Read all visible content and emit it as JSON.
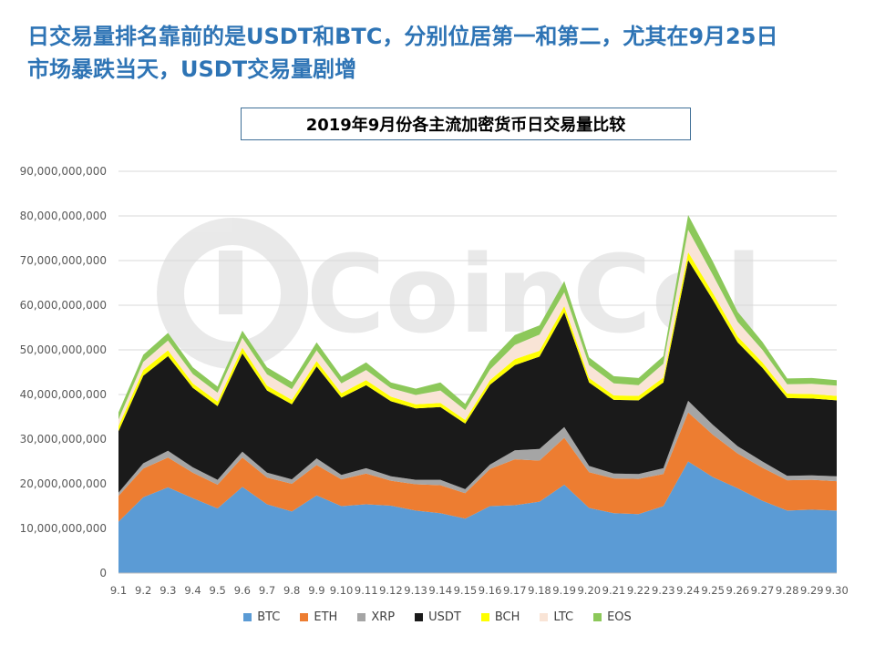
{
  "headline": {
    "line1": "日交易量排名靠前的是USDT和BTC，分别位居第一和第二，尤其在9月25日",
    "line2": "市场暴跌当天，USDT交易量剧增"
  },
  "watermark": {
    "text": "CoinCol"
  },
  "chart_data": {
    "type": "area",
    "stacked": true,
    "title": "2019年9月份各主流加密货币日交易量比较",
    "xlabel": "",
    "ylabel": "",
    "ylim": [
      0,
      90000000000
    ],
    "y_ticks": [
      0,
      10000000000,
      20000000000,
      30000000000,
      40000000000,
      50000000000,
      60000000000,
      70000000000,
      80000000000,
      90000000000
    ],
    "y_tick_labels": [
      "0",
      "10,000,000,000",
      "20,000,000,000",
      "30,000,000,000",
      "40,000,000,000",
      "50,000,000,000",
      "60,000,000,000",
      "70,000,000,000",
      "80,000,000,000",
      "90,000,000,000"
    ],
    "grid": true,
    "legend_position": "bottom",
    "categories": [
      "9.1",
      "9.2",
      "9.3",
      "9.4",
      "9.5",
      "9.6",
      "9.7",
      "9.8",
      "9.9",
      "9.10",
      "9.11",
      "9.12",
      "9.13",
      "9.14",
      "9.15",
      "9.16",
      "9.17",
      "9.18",
      "9.19",
      "9.20",
      "9.21",
      "9.22",
      "9.23",
      "9.24",
      "9.25",
      "9.26",
      "9.27",
      "9.28",
      "9.29",
      "9.30"
    ],
    "series": [
      {
        "name": "BTC",
        "color": "#5b9bd5",
        "values": [
          11.5,
          17,
          19.2,
          16.8,
          14.5,
          19.3,
          15.4,
          13.8,
          17.4,
          15,
          15.4,
          15.1,
          14,
          13.4,
          12.2,
          15,
          15.2,
          16,
          19.8,
          14.6,
          13.4,
          13.2,
          15,
          25,
          21.5,
          19,
          16.2,
          14,
          14.2,
          14
        ]
      },
      {
        "name": "ETH",
        "color": "#ed7d31",
        "values": [
          5.8,
          6.4,
          6.7,
          5.7,
          5.3,
          6.6,
          6,
          6.2,
          6.8,
          6,
          6.9,
          5.6,
          5.9,
          6.3,
          5.7,
          8.3,
          10.3,
          9.2,
          10.5,
          8,
          7.8,
          7.9,
          7.2,
          11,
          9.5,
          7.8,
          7.4,
          6.8,
          6.7,
          6.6
        ]
      },
      {
        "name": "XRP",
        "color": "#a5a5a5",
        "values": [
          0.7,
          1.2,
          1.5,
          1.2,
          1.1,
          1.3,
          1.1,
          1,
          1.5,
          1,
          1.2,
          1,
          1,
          1.2,
          0.9,
          1,
          2,
          2.6,
          2.4,
          1.4,
          1.1,
          1.1,
          1.3,
          2.6,
          2.2,
          1.6,
          1.4,
          1,
          1,
          1.1
        ]
      },
      {
        "name": "USDT",
        "color": "#1a1a1a",
        "values": [
          13.8,
          19.6,
          21.2,
          17.8,
          16.5,
          22,
          18.4,
          16.8,
          20.6,
          17.3,
          18.6,
          16.8,
          16,
          16.3,
          14.7,
          17.9,
          19.1,
          20.7,
          25.7,
          18.7,
          16.5,
          16.5,
          19.2,
          31.5,
          28,
          23.3,
          21,
          17.4,
          17.2,
          17
        ]
      },
      {
        "name": "BCH",
        "color": "#ffff00",
        "values": [
          1.1,
          1.3,
          1.3,
          1,
          1,
          1.3,
          1.1,
          1,
          1.2,
          1,
          1.1,
          1,
          0.9,
          0.9,
          0.8,
          1,
          1.3,
          1.3,
          1.4,
          1,
          1,
          1,
          1.1,
          1.8,
          1.5,
          1.3,
          1.2,
          1,
          1,
          1
        ]
      },
      {
        "name": "LTC",
        "color": "#f9e4d6",
        "values": [
          1.5,
          1.8,
          2.2,
          2.1,
          2,
          2.2,
          2.5,
          2.4,
          2.4,
          2.2,
          2.3,
          1.9,
          2.1,
          2.8,
          2.2,
          2.4,
          3.2,
          3.6,
          3.1,
          2.9,
          2.7,
          2.4,
          3.1,
          5,
          4.1,
          3.3,
          2.8,
          2.1,
          2.3,
          2.3
        ]
      },
      {
        "name": "EOS",
        "color": "#8cc85a",
        "values": [
          1.6,
          1.6,
          1.7,
          1.5,
          1.4,
          1.6,
          1.6,
          1.6,
          1.8,
          1.5,
          1.7,
          1.3,
          1.4,
          1.8,
          1.4,
          1.9,
          2.2,
          2.1,
          2.5,
          1.7,
          1.6,
          1.6,
          1.7,
          3.3,
          3,
          2.2,
          1.8,
          1.3,
          1.3,
          1.2
        ]
      }
    ],
    "values_unit_note": "values in billions"
  }
}
